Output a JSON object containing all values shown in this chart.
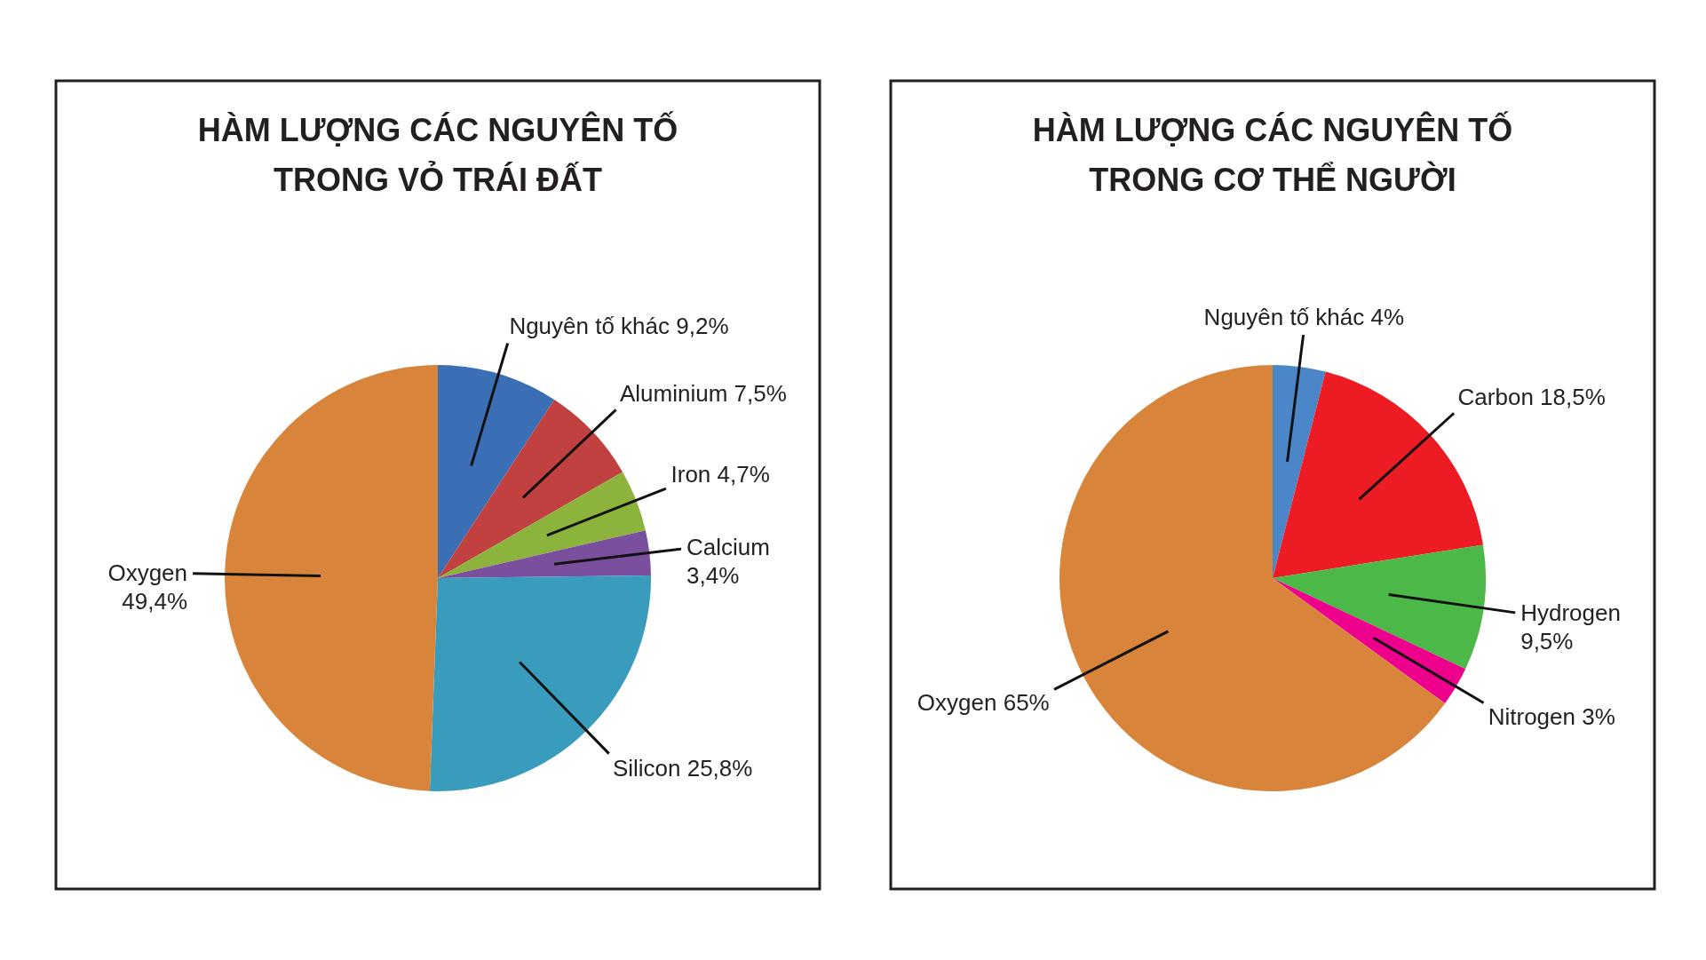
{
  "chart_data": [
    {
      "type": "pie",
      "title": "HÀM LƯỢNG CÁC NGUYÊN TỐ TRONG VỎ TRÁI ĐẤT",
      "categories": [
        "Nguyên tố khác",
        "Aluminium",
        "Iron",
        "Calcium",
        "Silicon",
        "Oxygen"
      ],
      "values": [
        9.2,
        7.5,
        4.7,
        3.4,
        25.8,
        49.4
      ],
      "value_labels": [
        "9,2%",
        "7,5%",
        "4,7%",
        "3,4%",
        "25,8%",
        "49,4%"
      ],
      "colors": [
        "#3a6eb5",
        "#c0413f",
        "#8cb43c",
        "#7a4f9e",
        "#3a9cbd",
        "#d9843b"
      ]
    },
    {
      "type": "pie",
      "title": "HÀM LƯỢNG CÁC NGUYÊN TỐ TRONG CƠ THỂ NGƯỜI",
      "categories": [
        "Nguyên tố khác",
        "Carbon",
        "Hydrogen",
        "Nitrogen",
        "Oxygen"
      ],
      "values": [
        4,
        18.5,
        9.5,
        3,
        65
      ],
      "value_labels": [
        "4%",
        "18,5%",
        "9,5%",
        "3%",
        "65%"
      ],
      "colors": [
        "#4a86c8",
        "#ed1c24",
        "#4bb848",
        "#ec008c",
        "#d8843a"
      ]
    }
  ]
}
